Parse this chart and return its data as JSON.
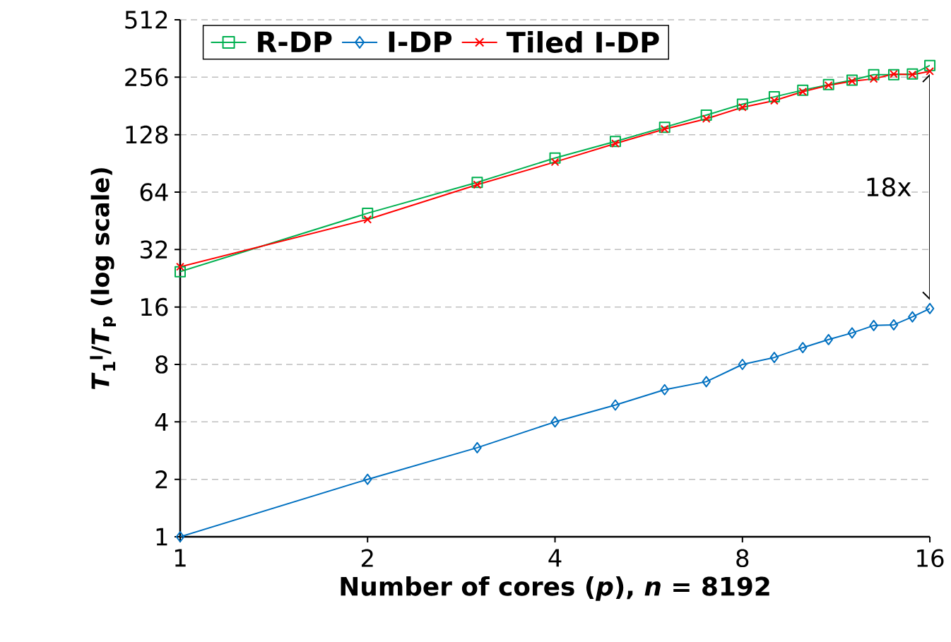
{
  "chart_data": {
    "type": "line",
    "xlabel": "Number of cores (*p*), *n* = 8192",
    "ylabel": "*T*$_{1}$$^{l}$/*T*$_{p}$ (log scale)",
    "x": [
      1,
      2,
      3,
      4,
      5,
      6,
      7,
      8,
      9,
      10,
      11,
      12,
      13,
      14,
      15,
      16
    ],
    "series": [
      {
        "name": "R-DP",
        "color": "#00b050",
        "marker": "square",
        "values": [
          24.5,
          49.6,
          72,
          96.5,
          118,
          140,
          162,
          185,
          202,
          219,
          234,
          247,
          264,
          264,
          266,
          295
        ]
      },
      {
        "name": "I-DP",
        "color": "#0070c0",
        "marker": "diamond",
        "values": [
          1,
          2,
          2.93,
          4,
          4.9,
          5.9,
          6.5,
          8,
          8.7,
          9.8,
          10.8,
          11.7,
          12.8,
          12.9,
          14.2,
          15.7
        ]
      },
      {
        "name": "Tiled I-DP",
        "color": "#ff0000",
        "marker": "cross",
        "values": [
          26,
          46,
          70,
          92,
          115,
          137,
          155,
          178,
          193,
          215,
          232,
          244,
          251,
          266,
          264,
          275
        ]
      }
    ],
    "log": "xy",
    "xlim": [
      1,
      16
    ],
    "xticks": [
      1,
      2,
      4,
      8,
      16
    ],
    "ylim": [
      1,
      512
    ],
    "yticks": [
      1,
      2,
      4,
      8,
      16,
      32,
      64,
      128,
      256,
      512
    ],
    "grid": "y",
    "legend": "top left",
    "line_style": "solid",
    "annotations": [
      "18x"
    ]
  }
}
